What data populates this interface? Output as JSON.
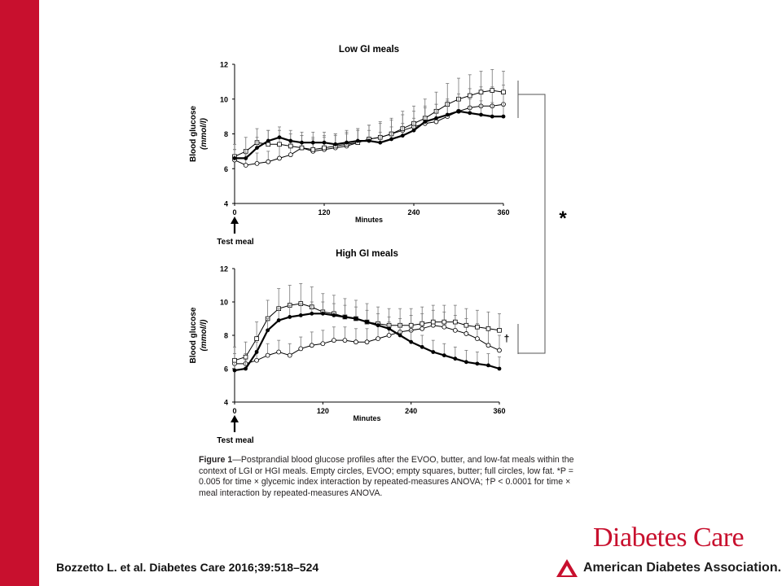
{
  "citation": "Bozzetto L. et al. Diabetes Care 2016;39:518–524",
  "journal": "Diabetes Care",
  "publisher": "American Diabetes Association.",
  "caption": {
    "label": "Figure 1",
    "text": "—Postprandial blood glucose profiles after the EVOO, butter, and low-fat meals within the context of LGI or HGI meals. Empty circles, EVOO; empty squares, butter; full circles, low fat. *P = 0.005 for time × glycemic index interaction by repeated-measures ANOVA; †P < 0.0001 for time × meal interaction by repeated-measures ANOVA."
  },
  "significance": {
    "star": "*",
    "dagger": "†"
  },
  "arrow_label": "Test meal",
  "colors": {
    "brand_red": "#c8102e",
    "series": "#000000"
  },
  "chart_data": [
    {
      "type": "line",
      "title": "Low GI meals",
      "xlabel": "Minutes",
      "ylabel": "Blood glucose",
      "yunit": "(mmol/l)",
      "xlim": [
        0,
        360
      ],
      "ylim": [
        4,
        12
      ],
      "xticks": [
        0,
        120,
        240,
        360
      ],
      "yticks": [
        4,
        6,
        8,
        10,
        12
      ],
      "grid": false,
      "error_bars": true,
      "x": [
        0,
        15,
        30,
        45,
        60,
        75,
        90,
        105,
        120,
        135,
        150,
        165,
        180,
        195,
        210,
        225,
        240,
        255,
        270,
        285,
        300,
        315,
        330,
        345,
        360
      ],
      "series": [
        {
          "name": "Empty circles, EVOO",
          "marker": "open-circle",
          "values": [
            6.5,
            6.2,
            6.3,
            6.4,
            6.6,
            6.8,
            7.2,
            7.0,
            7.1,
            7.2,
            7.3,
            7.5,
            7.7,
            7.8,
            8.0,
            8.2,
            8.4,
            8.6,
            8.7,
            9.0,
            9.3,
            9.5,
            9.6,
            9.6,
            9.7
          ],
          "error": [
            0.6,
            0.6,
            0.6,
            0.6,
            0.7,
            0.7,
            0.7,
            0.7,
            0.7,
            0.7,
            0.7,
            0.8,
            0.8,
            0.8,
            0.8,
            0.9,
            0.9,
            1.0,
            1.0,
            1.0,
            1.0,
            1.1,
            1.1,
            1.1,
            1.1
          ]
        },
        {
          "name": "Empty squares, butter",
          "marker": "open-square",
          "values": [
            6.7,
            7.0,
            7.5,
            7.4,
            7.4,
            7.3,
            7.2,
            7.1,
            7.2,
            7.3,
            7.4,
            7.5,
            7.7,
            7.8,
            8.0,
            8.3,
            8.6,
            8.9,
            9.3,
            9.7,
            10.0,
            10.2,
            10.4,
            10.5,
            10.4
          ],
          "error": [
            0.7,
            0.8,
            0.8,
            0.8,
            0.8,
            0.7,
            0.7,
            0.7,
            0.7,
            0.7,
            0.8,
            0.8,
            0.8,
            0.9,
            0.9,
            1.0,
            1.0,
            1.1,
            1.1,
            1.2,
            1.2,
            1.2,
            1.2,
            1.2,
            1.2
          ]
        },
        {
          "name": "Full circles, low fat",
          "marker": "filled-circle",
          "values": [
            6.6,
            6.6,
            7.2,
            7.6,
            7.8,
            7.6,
            7.5,
            7.5,
            7.5,
            7.4,
            7.5,
            7.6,
            7.6,
            7.5,
            7.7,
            7.9,
            8.2,
            8.7,
            8.9,
            9.1,
            9.3,
            9.2,
            9.1,
            9.0,
            9.0
          ],
          "error": [
            0.5,
            0.5,
            0.6,
            0.6,
            0.6,
            0.6,
            0.6,
            0.6,
            0.6,
            0.6,
            0.6,
            0.6,
            0.6,
            0.6,
            0.7,
            0.7,
            0.7,
            0.8,
            0.8,
            0.8,
            0.8,
            0.8,
            0.8,
            0.8,
            0.8
          ]
        }
      ]
    },
    {
      "type": "line",
      "title": "High GI meals",
      "xlabel": "Minutes",
      "ylabel": "Blood glucose",
      "yunit": "(mmol/l)",
      "xlim": [
        0,
        360
      ],
      "ylim": [
        4,
        12
      ],
      "xticks": [
        0,
        120,
        240,
        360
      ],
      "yticks": [
        4,
        6,
        8,
        10,
        12
      ],
      "grid": false,
      "error_bars": true,
      "x": [
        0,
        15,
        30,
        45,
        60,
        75,
        90,
        105,
        120,
        135,
        150,
        165,
        180,
        195,
        210,
        225,
        240,
        255,
        270,
        285,
        300,
        315,
        330,
        345,
        360
      ],
      "series": [
        {
          "name": "Empty circles, EVOO",
          "marker": "open-circle",
          "values": [
            6.3,
            6.3,
            6.5,
            6.8,
            7.0,
            6.8,
            7.2,
            7.4,
            7.5,
            7.7,
            7.7,
            7.6,
            7.6,
            7.8,
            8.0,
            8.2,
            8.3,
            8.4,
            8.6,
            8.5,
            8.3,
            8.1,
            7.8,
            7.4,
            7.1
          ],
          "error": [
            0.6,
            0.6,
            0.6,
            0.7,
            0.7,
            0.7,
            0.7,
            0.8,
            0.8,
            0.8,
            0.8,
            0.8,
            0.8,
            0.8,
            0.8,
            0.8,
            0.9,
            0.9,
            0.9,
            0.9,
            0.9,
            0.9,
            0.9,
            0.9,
            0.9
          ]
        },
        {
          "name": "Empty squares, butter",
          "marker": "open-square",
          "values": [
            6.5,
            6.7,
            7.8,
            9.0,
            9.6,
            9.8,
            9.9,
            9.7,
            9.4,
            9.3,
            9.1,
            9.0,
            8.8,
            8.7,
            8.6,
            8.6,
            8.6,
            8.7,
            8.8,
            8.8,
            8.8,
            8.6,
            8.5,
            8.4,
            8.3
          ],
          "error": [
            0.8,
            0.9,
            1.0,
            1.1,
            1.2,
            1.2,
            1.2,
            1.2,
            1.1,
            1.1,
            1.1,
            1.1,
            1.1,
            1.0,
            1.0,
            1.0,
            1.0,
            1.0,
            1.0,
            1.0,
            1.0,
            1.0,
            1.0,
            1.0,
            1.0
          ]
        },
        {
          "name": "Full circles, low fat",
          "marker": "filled-circle",
          "values": [
            5.9,
            6.0,
            7.0,
            8.3,
            8.9,
            9.1,
            9.2,
            9.3,
            9.3,
            9.2,
            9.1,
            9.0,
            8.8,
            8.6,
            8.4,
            8.0,
            7.6,
            7.3,
            7.0,
            6.8,
            6.6,
            6.4,
            6.3,
            6.2,
            6.0
          ],
          "error": [
            0.5,
            0.5,
            0.6,
            0.7,
            0.7,
            0.7,
            0.7,
            0.7,
            0.7,
            0.7,
            0.7,
            0.7,
            0.7,
            0.7,
            0.7,
            0.7,
            0.7,
            0.7,
            0.7,
            0.7,
            0.7,
            0.7,
            0.7,
            0.7,
            0.7
          ]
        }
      ]
    }
  ]
}
